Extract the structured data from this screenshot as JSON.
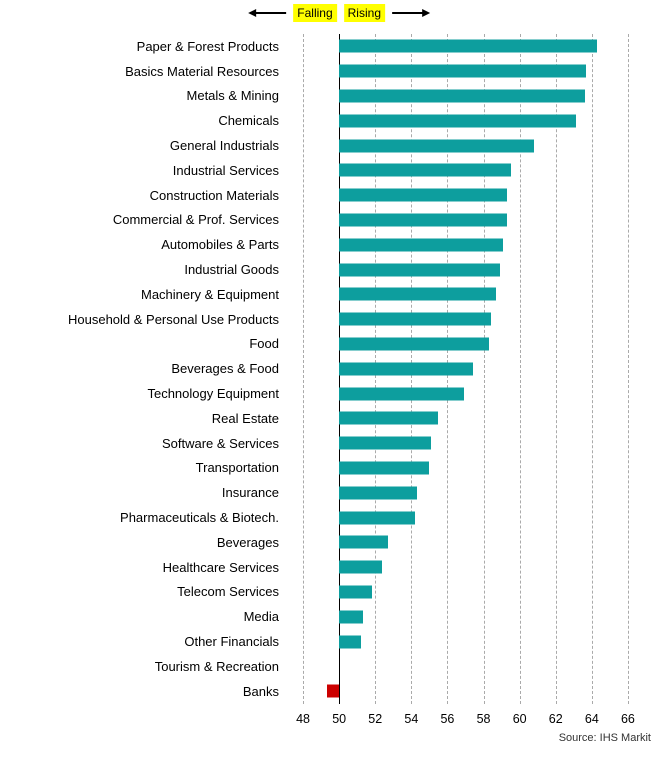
{
  "annotations": {
    "falling_label": "Falling",
    "rising_label": "Rising",
    "source": "Source: IHS Markit"
  },
  "chart_data": {
    "type": "bar",
    "orientation": "horizontal",
    "title": "",
    "baseline": 50,
    "xlim": [
      47,
      67
    ],
    "x_ticks": [
      48,
      50,
      52,
      54,
      56,
      58,
      60,
      62,
      64,
      66
    ],
    "grid": "dashed-vertical",
    "colors": {
      "rising": "#0d9e9e",
      "falling": "#cc0000"
    },
    "categories": [
      "Paper & Forest Products",
      "Basics Material Resources",
      "Metals & Mining",
      "Chemicals",
      "General Industrials",
      "Industrial Services",
      "Construction Materials",
      "Commercial & Prof. Services",
      "Automobiles & Parts",
      "Industrial Goods",
      "Machinery & Equipment",
      "Household & Personal Use Products",
      "Food",
      "Beverages & Food",
      "Technology Equipment",
      "Real Estate",
      "Software & Services",
      "Transportation",
      "Insurance",
      "Pharmaceuticals & Biotech.",
      "Beverages",
      "Healthcare Services",
      "Telecom Services",
      "Media",
      "Other Financials",
      "Tourism & Recreation",
      "Banks"
    ],
    "values": [
      64.3,
      63.7,
      63.6,
      63.1,
      60.8,
      59.5,
      59.3,
      59.3,
      59.1,
      58.9,
      58.7,
      58.4,
      58.3,
      57.4,
      56.9,
      55.5,
      55.1,
      55.0,
      54.3,
      54.2,
      52.7,
      52.4,
      51.8,
      51.3,
      51.2,
      50.0,
      49.3
    ]
  }
}
